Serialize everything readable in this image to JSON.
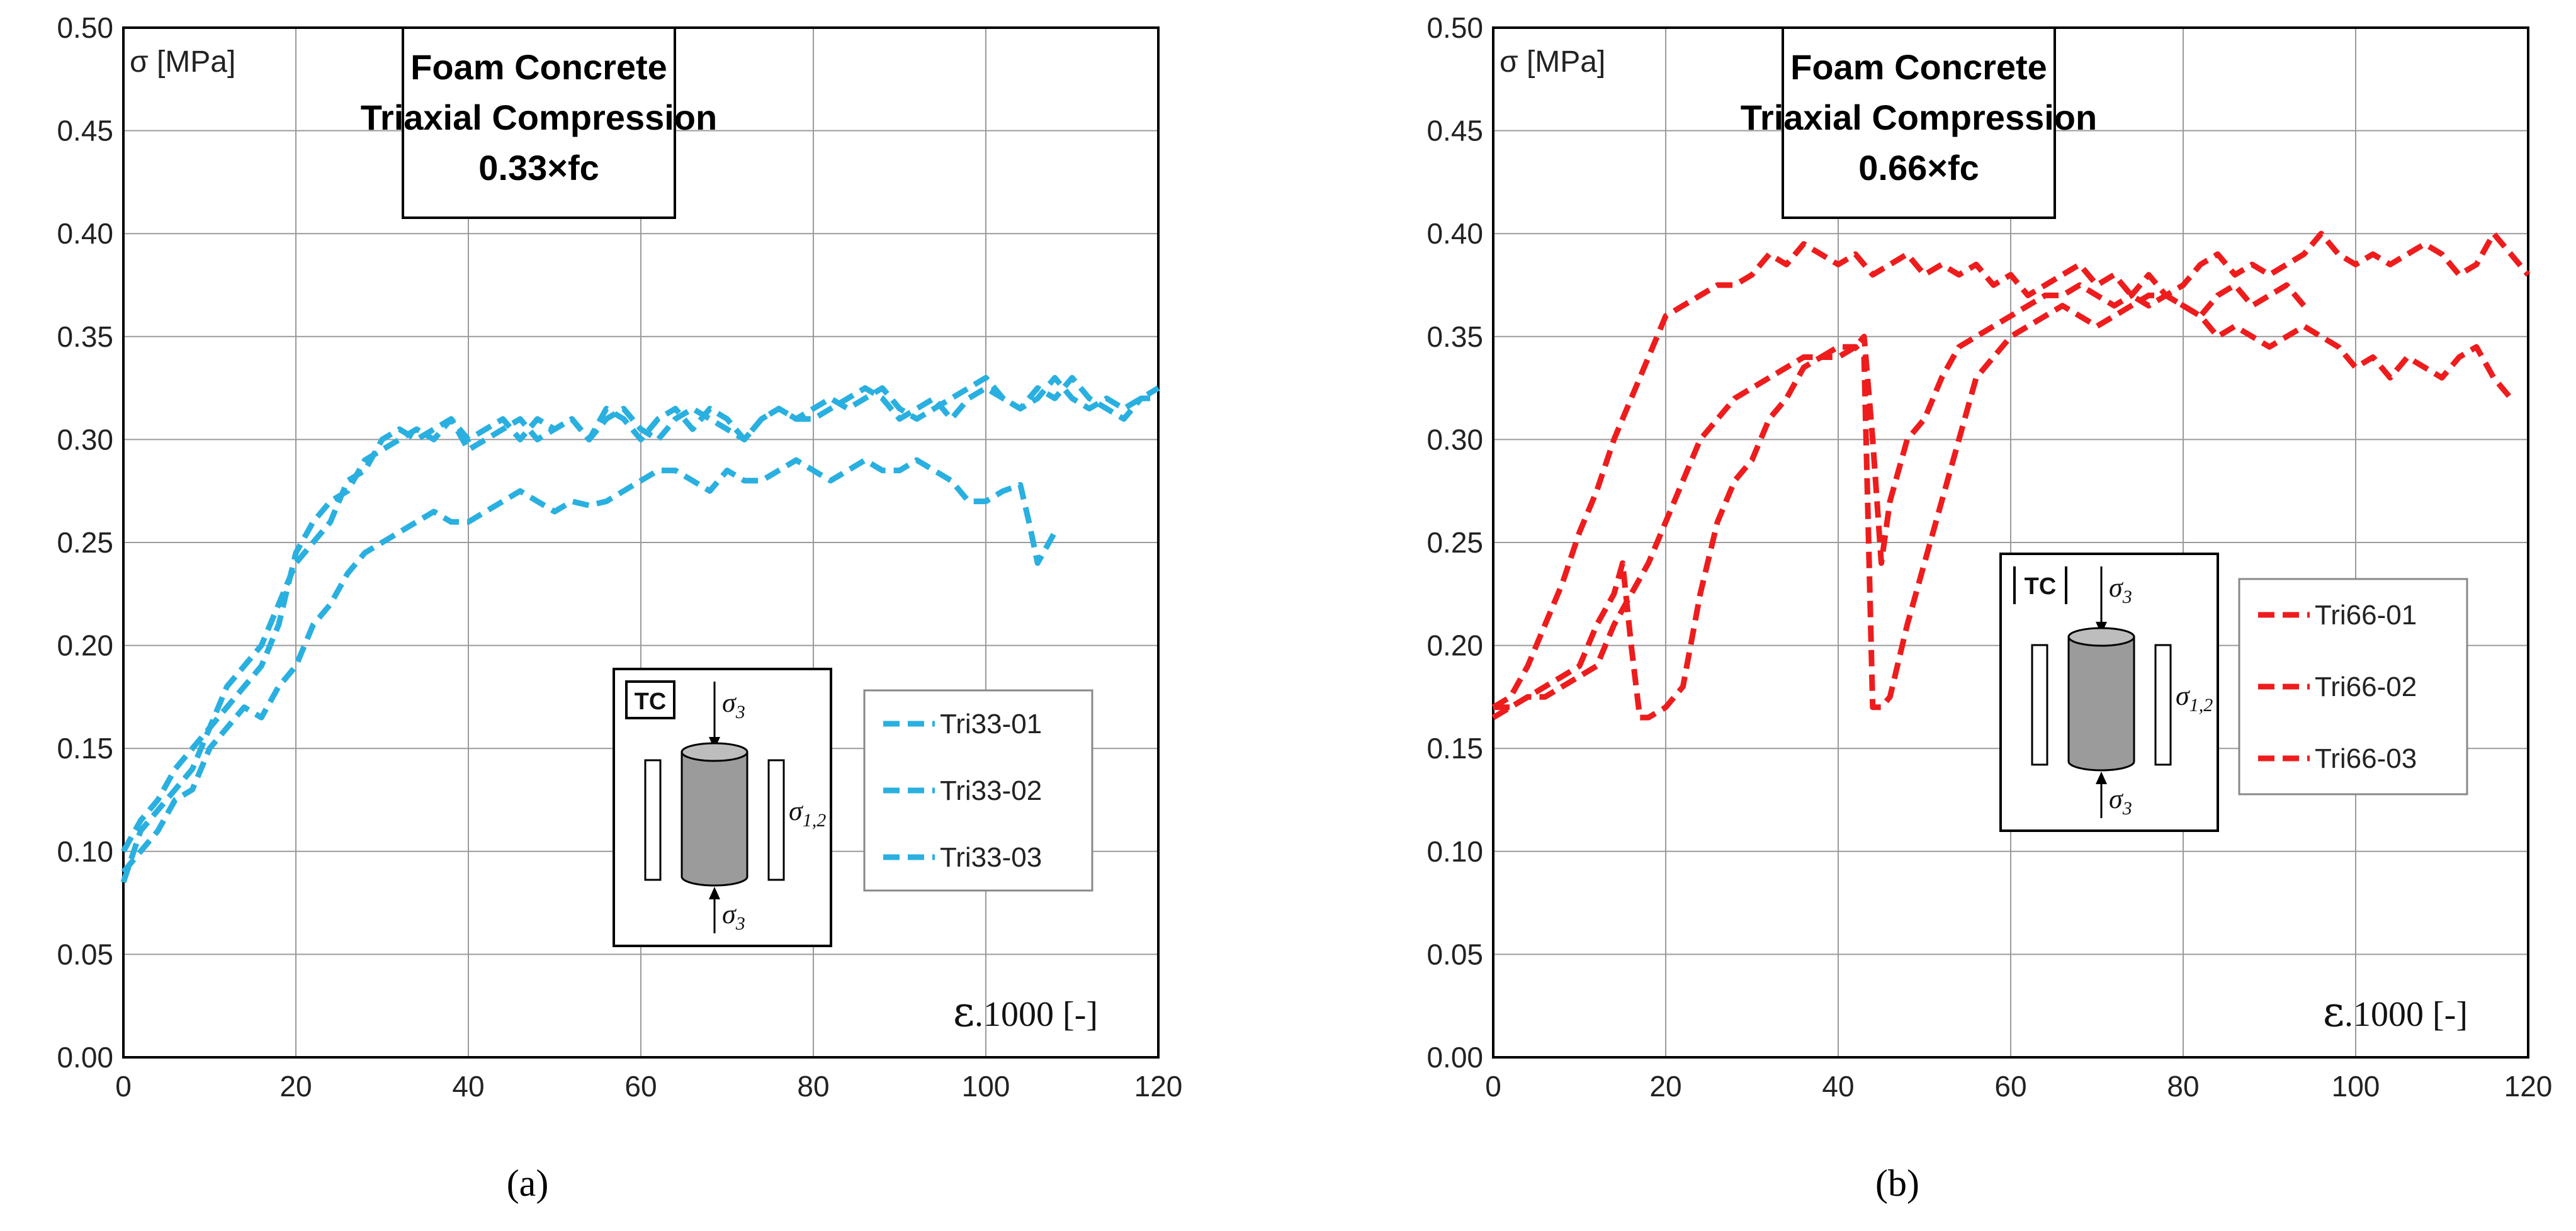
{
  "chart_data": [
    {
      "type": "line",
      "panel_label": "(a)",
      "title_lines": [
        "Foam Concrete",
        "Triaxial Compression",
        "0.33×fc"
      ],
      "ylabel": "σ [MPa]",
      "xlabel_symbol": "ε",
      "xlabel_rest": ".1000 [-]",
      "xlim": [
        0,
        120
      ],
      "ylim": [
        0,
        0.5
      ],
      "x_ticks": [
        "0",
        "20",
        "40",
        "60",
        "80",
        "100",
        "120"
      ],
      "y_ticks": [
        "0.00",
        "0.05",
        "0.10",
        "0.15",
        "0.20",
        "0.25",
        "0.30",
        "0.35",
        "0.40",
        "0.45",
        "0.50"
      ],
      "grid": true,
      "legend_position": "right-middle",
      "inset": {
        "tc_label": "TC",
        "sigma3": "σ",
        "sigma3_sub": "3",
        "sigma12": "σ",
        "sigma12_sub": "1,2"
      },
      "color": "#29b0e0",
      "series": [
        {
          "name": "Tri33-01",
          "x": [
            0,
            2,
            4,
            6,
            8,
            10,
            12,
            14,
            16,
            18,
            20,
            22,
            24,
            26,
            28,
            30,
            32,
            34,
            36,
            38,
            40,
            42,
            44,
            46,
            48,
            50,
            52,
            54,
            56,
            58,
            60,
            62,
            64,
            66,
            68,
            70,
            72,
            74,
            76,
            78,
            80,
            82,
            84,
            86,
            88,
            90,
            92,
            94,
            96,
            98,
            100,
            102,
            104,
            106,
            108,
            110,
            112,
            114,
            116,
            118,
            120
          ],
          "y": [
            0.085,
            0.11,
            0.12,
            0.13,
            0.14,
            0.16,
            0.18,
            0.19,
            0.2,
            0.22,
            0.24,
            0.25,
            0.26,
            0.28,
            0.285,
            0.3,
            0.305,
            0.3,
            0.305,
            0.31,
            0.3,
            0.305,
            0.31,
            0.3,
            0.31,
            0.305,
            0.31,
            0.3,
            0.31,
            0.315,
            0.305,
            0.3,
            0.31,
            0.315,
            0.31,
            0.305,
            0.3,
            0.31,
            0.315,
            0.31,
            0.31,
            0.315,
            0.32,
            0.325,
            0.32,
            0.31,
            0.315,
            0.32,
            0.31,
            0.32,
            0.325,
            0.32,
            0.315,
            0.32,
            0.33,
            0.32,
            0.315,
            0.32,
            0.315,
            0.32,
            0.325
          ]
        },
        {
          "name": "Tri33-02",
          "x": [
            0,
            2,
            4,
            6,
            8,
            10,
            12,
            14,
            16,
            18,
            20,
            22,
            24,
            26,
            28,
            30,
            32,
            34,
            36,
            38,
            40,
            42,
            44,
            46,
            48,
            50,
            52,
            54,
            56,
            58,
            60,
            62,
            64,
            66,
            68,
            70,
            72,
            74,
            76,
            78,
            80,
            82,
            84,
            86,
            88,
            90,
            92,
            94,
            96,
            98,
            100,
            102,
            104,
            106,
            108,
            110,
            112,
            114,
            116,
            118,
            120
          ],
          "y": [
            0.1,
            0.115,
            0.125,
            0.14,
            0.15,
            0.16,
            0.17,
            0.18,
            0.19,
            0.21,
            0.245,
            0.26,
            0.27,
            0.275,
            0.29,
            0.295,
            0.3,
            0.305,
            0.3,
            0.31,
            0.295,
            0.3,
            0.305,
            0.31,
            0.3,
            0.305,
            0.31,
            0.3,
            0.315,
            0.31,
            0.3,
            0.31,
            0.315,
            0.305,
            0.315,
            0.31,
            0.3,
            0.31,
            0.315,
            0.31,
            0.315,
            0.32,
            0.315,
            0.32,
            0.325,
            0.315,
            0.31,
            0.315,
            0.32,
            0.325,
            0.33,
            0.32,
            0.315,
            0.325,
            0.32,
            0.33,
            0.32,
            0.315,
            0.31,
            0.32,
            0.32
          ]
        },
        {
          "name": "Tri33-03",
          "x": [
            0,
            2,
            4,
            6,
            8,
            10,
            12,
            14,
            16,
            18,
            20,
            22,
            24,
            26,
            28,
            30,
            32,
            34,
            36,
            38,
            40,
            42,
            44,
            46,
            48,
            50,
            52,
            54,
            56,
            58,
            60,
            62,
            64,
            66,
            68,
            70,
            72,
            74,
            76,
            78,
            80,
            82,
            84,
            86,
            88,
            90,
            92,
            94,
            96,
            98,
            100,
            102,
            104,
            105,
            106,
            108
          ],
          "y": [
            0.09,
            0.1,
            0.11,
            0.125,
            0.13,
            0.15,
            0.16,
            0.17,
            0.165,
            0.18,
            0.19,
            0.21,
            0.22,
            0.235,
            0.245,
            0.25,
            0.255,
            0.26,
            0.265,
            0.26,
            0.26,
            0.265,
            0.27,
            0.275,
            0.27,
            0.265,
            0.27,
            0.268,
            0.27,
            0.275,
            0.28,
            0.285,
            0.285,
            0.28,
            0.275,
            0.285,
            0.28,
            0.28,
            0.285,
            0.29,
            0.285,
            0.28,
            0.285,
            0.29,
            0.285,
            0.285,
            0.29,
            0.285,
            0.28,
            0.27,
            0.27,
            0.275,
            0.278,
            0.26,
            0.24,
            0.255
          ]
        }
      ]
    },
    {
      "type": "line",
      "panel_label": "(b)",
      "title_lines": [
        "Foam Concrete",
        "Triaxial Compression",
        "0.66×fc"
      ],
      "ylabel": "σ [MPa]",
      "xlabel_symbol": "ε",
      "xlabel_rest": ".1000 [-]",
      "xlim": [
        0,
        120
      ],
      "ylim": [
        0,
        0.5
      ],
      "x_ticks": [
        "0",
        "20",
        "40",
        "60",
        "80",
        "100",
        "120"
      ],
      "y_ticks": [
        "0.00",
        "0.05",
        "0.10",
        "0.15",
        "0.20",
        "0.25",
        "0.30",
        "0.35",
        "0.40",
        "0.45",
        "0.50"
      ],
      "grid": true,
      "legend_position": "right-middle",
      "inset": {
        "tc_label": "TC",
        "sigma3": "σ",
        "sigma3_sub": "3",
        "sigma12": "σ",
        "sigma12_sub": "1,2"
      },
      "color": "#ee1c1c",
      "series": [
        {
          "name": "Tri66-01",
          "x": [
            0,
            2,
            4,
            6,
            8,
            10,
            12,
            14,
            16,
            18,
            20,
            22,
            24,
            26,
            28,
            30,
            32,
            34,
            36,
            38,
            40,
            42,
            44,
            46,
            48,
            50,
            52,
            54,
            56,
            58,
            60,
            62,
            64,
            66,
            68,
            70,
            72,
            74,
            76,
            78,
            80,
            82,
            84,
            86,
            88,
            90,
            92,
            94,
            96,
            98,
            100,
            102,
            104,
            106,
            108,
            110,
            112,
            114,
            116,
            118,
            120
          ],
          "y": [
            0.17,
            0.175,
            0.19,
            0.21,
            0.23,
            0.255,
            0.275,
            0.3,
            0.32,
            0.34,
            0.36,
            0.365,
            0.37,
            0.375,
            0.375,
            0.38,
            0.39,
            0.385,
            0.395,
            0.39,
            0.385,
            0.39,
            0.38,
            0.385,
            0.39,
            0.38,
            0.385,
            0.38,
            0.385,
            0.375,
            0.38,
            0.37,
            0.375,
            0.38,
            0.385,
            0.375,
            0.38,
            0.37,
            0.365,
            0.37,
            0.375,
            0.385,
            0.39,
            0.38,
            0.385,
            0.38,
            0.385,
            0.39,
            0.4,
            0.39,
            0.385,
            0.39,
            0.385,
            0.39,
            0.395,
            0.39,
            0.38,
            0.385,
            0.4,
            0.39,
            0.38
          ]
        },
        {
          "name": "Tri66-02",
          "x": [
            0,
            2,
            4,
            6,
            8,
            10,
            12,
            14,
            15,
            16,
            17,
            18,
            20,
            22,
            24,
            26,
            28,
            30,
            32,
            34,
            36,
            38,
            40,
            42,
            43,
            44,
            45,
            46,
            48,
            50,
            52,
            54,
            56,
            58,
            60,
            62,
            64,
            66,
            68,
            70,
            72,
            74,
            76,
            78,
            80,
            82,
            84,
            86,
            88,
            90,
            92,
            94
          ],
          "y": [
            0.165,
            0.17,
            0.175,
            0.18,
            0.185,
            0.19,
            0.21,
            0.225,
            0.24,
            0.2,
            0.165,
            0.165,
            0.17,
            0.18,
            0.225,
            0.26,
            0.28,
            0.29,
            0.31,
            0.32,
            0.335,
            0.34,
            0.34,
            0.345,
            0.35,
            0.3,
            0.24,
            0.27,
            0.3,
            0.31,
            0.33,
            0.345,
            0.35,
            0.355,
            0.36,
            0.365,
            0.37,
            0.37,
            0.375,
            0.37,
            0.365,
            0.37,
            0.38,
            0.37,
            0.365,
            0.36,
            0.37,
            0.375,
            0.365,
            0.37,
            0.375,
            0.365
          ]
        },
        {
          "name": "Tri66-03",
          "x": [
            0,
            2,
            4,
            6,
            8,
            10,
            12,
            14,
            16,
            18,
            20,
            22,
            24,
            26,
            28,
            30,
            32,
            34,
            36,
            38,
            40,
            42,
            43,
            44,
            45,
            46,
            48,
            50,
            52,
            54,
            56,
            58,
            60,
            62,
            64,
            66,
            68,
            70,
            72,
            74,
            76,
            78,
            80,
            82,
            84,
            86,
            88,
            90,
            92,
            94,
            96,
            98,
            100,
            102,
            104,
            106,
            108,
            110,
            112,
            114,
            116,
            118
          ],
          "y": [
            0.17,
            0.17,
            0.175,
            0.175,
            0.18,
            0.185,
            0.19,
            0.21,
            0.225,
            0.24,
            0.26,
            0.28,
            0.3,
            0.31,
            0.32,
            0.325,
            0.33,
            0.335,
            0.34,
            0.34,
            0.345,
            0.345,
            0.34,
            0.17,
            0.17,
            0.175,
            0.21,
            0.24,
            0.27,
            0.3,
            0.33,
            0.34,
            0.35,
            0.355,
            0.36,
            0.365,
            0.36,
            0.355,
            0.36,
            0.365,
            0.37,
            0.37,
            0.365,
            0.36,
            0.35,
            0.355,
            0.35,
            0.345,
            0.35,
            0.355,
            0.35,
            0.345,
            0.335,
            0.34,
            0.33,
            0.34,
            0.335,
            0.33,
            0.34,
            0.345,
            0.33,
            0.32
          ]
        }
      ]
    }
  ]
}
